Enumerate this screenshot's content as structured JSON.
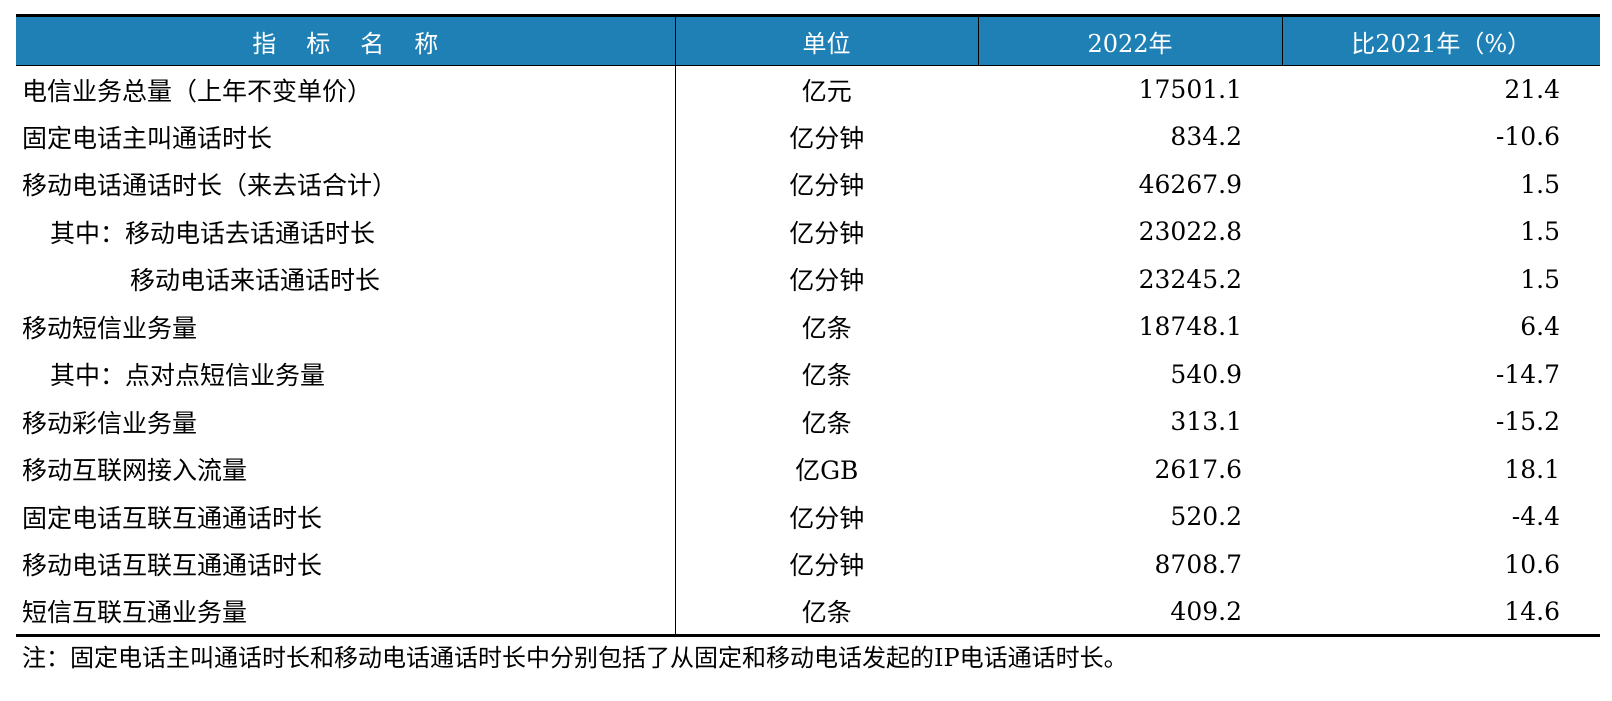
{
  "table": {
    "headers": {
      "name": "指标名称",
      "unit": "单位",
      "year": "2022年",
      "change": "比2021年（%）"
    },
    "rows": [
      {
        "name": "电信业务总量（上年不变单价）",
        "unit": "亿元",
        "value": "17501.1",
        "change": "21.4",
        "indent": 0
      },
      {
        "name": "固定电话主叫通话时长",
        "unit": "亿分钟",
        "value": "834.2",
        "change": "-10.6",
        "indent": 0
      },
      {
        "name": "移动电话通话时长（来去话合计）",
        "unit": "亿分钟",
        "value": "46267.9",
        "change": "1.5",
        "indent": 0
      },
      {
        "name": "其中：移动电话去话通话时长",
        "unit": "亿分钟",
        "value": "23022.8",
        "change": "1.5",
        "indent": 1
      },
      {
        "name": "移动电话来话通话时长",
        "unit": "亿分钟",
        "value": "23245.2",
        "change": "1.5",
        "indent": 2
      },
      {
        "name": "移动短信业务量",
        "unit": "亿条",
        "value": "18748.1",
        "change": "6.4",
        "indent": 0
      },
      {
        "name": "其中：点对点短信业务量",
        "unit": "亿条",
        "value": "540.9",
        "change": "-14.7",
        "indent": 1
      },
      {
        "name": "移动彩信业务量",
        "unit": "亿条",
        "value": "313.1",
        "change": "-15.2",
        "indent": 0
      },
      {
        "name": "移动互联网接入流量",
        "unit": "亿GB",
        "value": "2617.6",
        "change": "18.1",
        "indent": 0
      },
      {
        "name": "固定电话互联互通通话时长",
        "unit": "亿分钟",
        "value": "520.2",
        "change": "-4.4",
        "indent": 0
      },
      {
        "name": "移动电话互联互通通话时长",
        "unit": "亿分钟",
        "value": "8708.7",
        "change": "10.6",
        "indent": 0
      },
      {
        "name": "短信互联互通业务量",
        "unit": "亿条",
        "value": "409.2",
        "change": "14.6",
        "indent": 0
      }
    ]
  },
  "note": "注：固定电话主叫通话时长和移动电话通话时长中分别包括了从固定和移动电话发起的IP电话通话时长。",
  "colors": {
    "header_bg": "#1f80b6",
    "header_text": "#ffffff"
  }
}
